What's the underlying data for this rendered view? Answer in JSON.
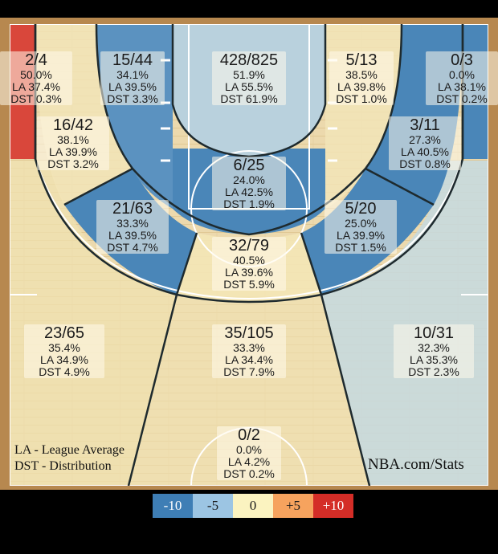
{
  "chart_data": {
    "type": "heatmap",
    "title": "",
    "zones": [
      {
        "id": "left-corner-3",
        "made": 2,
        "attempts": 4,
        "frac": "2/4",
        "pct": "50.0%",
        "la": "LA 37.4%",
        "dst": "DST 0.3%",
        "diff": 12.6
      },
      {
        "id": "left-wing-3",
        "made": 15,
        "attempts": 44,
        "frac": "15/44",
        "pct": "34.1%",
        "la": "LA 39.5%",
        "dst": "DST 3.3%",
        "diff": -5.4
      },
      {
        "id": "restricted-area",
        "made": 428,
        "attempts": 825,
        "frac": "428/825",
        "pct": "51.9%",
        "la": "LA 55.5%",
        "dst": "DST 61.9%",
        "diff": -3.6
      },
      {
        "id": "right-wing-3",
        "made": 5,
        "attempts": 13,
        "frac": "5/13",
        "pct": "38.5%",
        "la": "LA 39.8%",
        "dst": "DST 1.0%",
        "diff": -1.3
      },
      {
        "id": "right-corner-3",
        "made": 0,
        "attempts": 3,
        "frac": "0/3",
        "pct": "0.0%",
        "la": "LA 38.1%",
        "dst": "DST 0.2%",
        "diff": -38.1
      },
      {
        "id": "left-baseline-mid",
        "made": 16,
        "attempts": 42,
        "frac": "16/42",
        "pct": "38.1%",
        "la": "LA 39.9%",
        "dst": "DST 3.2%",
        "diff": -1.8
      },
      {
        "id": "right-baseline-mid",
        "made": 3,
        "attempts": 11,
        "frac": "3/11",
        "pct": "27.3%",
        "la": "LA 40.5%",
        "dst": "DST 0.8%",
        "diff": -13.2
      },
      {
        "id": "paint-non-ra",
        "made": 6,
        "attempts": 25,
        "frac": "6/25",
        "pct": "24.0%",
        "la": "LA 42.5%",
        "dst": "DST 1.9%",
        "diff": -18.5
      },
      {
        "id": "left-elbow-mid",
        "made": 21,
        "attempts": 63,
        "frac": "21/63",
        "pct": "33.3%",
        "la": "LA 39.5%",
        "dst": "DST 4.7%",
        "diff": -6.2
      },
      {
        "id": "right-elbow-mid",
        "made": 5,
        "attempts": 20,
        "frac": "5/20",
        "pct": "25.0%",
        "la": "LA 39.9%",
        "dst": "DST 1.5%",
        "diff": -14.9
      },
      {
        "id": "top-key-mid",
        "made": 32,
        "attempts": 79,
        "frac": "32/79",
        "pct": "40.5%",
        "la": "LA 39.6%",
        "dst": "DST 5.9%",
        "diff": 0.9
      },
      {
        "id": "left-above-break-3",
        "made": 23,
        "attempts": 65,
        "frac": "23/65",
        "pct": "35.4%",
        "la": "LA 34.9%",
        "dst": "DST 4.9%",
        "diff": 0.5
      },
      {
        "id": "top-above-break-3",
        "made": 35,
        "attempts": 105,
        "frac": "35/105",
        "pct": "33.3%",
        "la": "LA 34.4%",
        "dst": "DST 7.9%",
        "diff": -1.1
      },
      {
        "id": "right-above-break-3",
        "made": 10,
        "attempts": 31,
        "frac": "10/31",
        "pct": "32.3%",
        "la": "LA 35.3%",
        "dst": "DST 2.3%",
        "diff": -3.0
      },
      {
        "id": "backcourt",
        "made": 0,
        "attempts": 2,
        "frac": "0/2",
        "pct": "0.0%",
        "la": "LA 4.2%",
        "dst": "DST 0.2%",
        "diff": -4.2
      }
    ],
    "legend": {
      "items": [
        {
          "label": "-10",
          "color": "#3e7eb5"
        },
        {
          "label": "-5",
          "color": "#9cc5e3"
        },
        {
          "label": "0",
          "color": "#fbf3c0"
        },
        {
          "label": "+5",
          "color": "#f6a35e"
        },
        {
          "label": "+10",
          "color": "#d42d27"
        }
      ]
    },
    "zone_colors": {
      "hot": "#d94c3e",
      "cold": "#4a86b8",
      "cool": "#a9c9dc",
      "neutral": "#f2e2ad",
      "wood": "#ead6a9"
    }
  },
  "annotations": {
    "la_note": "LA - League Average",
    "dst_note": "DST - Distribution",
    "brand": "NBA.com/Stats"
  }
}
